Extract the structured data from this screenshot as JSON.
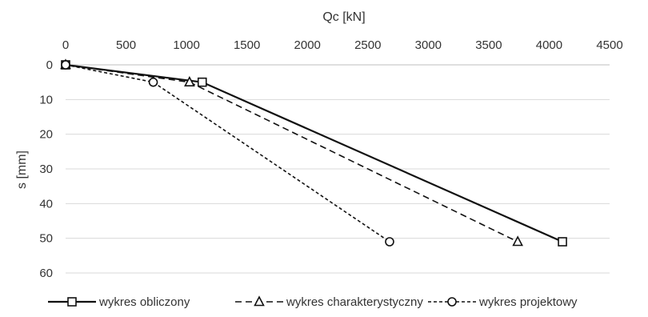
{
  "chart_data": {
    "type": "line",
    "xlabel": "Qc [kN]",
    "ylabel": "s [mm]",
    "xlim": [
      0,
      4500
    ],
    "ylim": [
      0,
      60
    ],
    "x_ticks": [
      0,
      500,
      1000,
      1500,
      2000,
      2500,
      3000,
      3500,
      4000,
      4500
    ],
    "y_ticks": [
      0,
      10,
      20,
      30,
      40,
      50,
      60
    ],
    "x_axis_position": "top",
    "y_axis_inverted": true,
    "grid": "horizontal",
    "legend_position": "bottom",
    "series": [
      {
        "name": "wykres obliczony",
        "line_style": "solid",
        "marker": "square",
        "points": [
          [
            0,
            0
          ],
          [
            1130,
            5
          ],
          [
            4110,
            51
          ]
        ]
      },
      {
        "name": "wykres charakterystyczny",
        "line_style": "dashed",
        "marker": "triangle",
        "points": [
          [
            0,
            0
          ],
          [
            1025,
            5
          ],
          [
            3740,
            51
          ]
        ]
      },
      {
        "name": "wykres projektowy",
        "line_style": "dotted",
        "marker": "circle",
        "points": [
          [
            0,
            0
          ],
          [
            725,
            5
          ],
          [
            2680,
            51
          ]
        ]
      }
    ]
  }
}
